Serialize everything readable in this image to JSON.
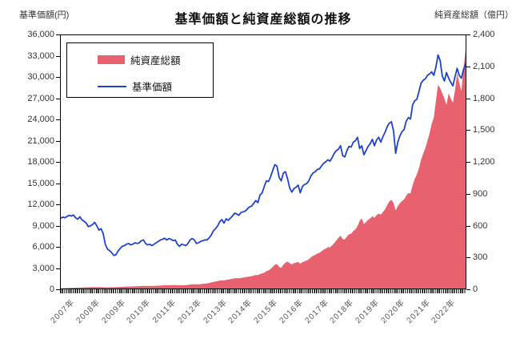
{
  "header": {
    "title": "基準価額と純資産総額の推移",
    "left_axis_caption": "基準価額(円)",
    "right_axis_caption": "純資産総額（億円）"
  },
  "legend": {
    "assets_label": "純資産総額",
    "nav_label": "基準価額"
  },
  "colors": {
    "assets_fill": "#E8616F",
    "nav_line": "#1E43C8",
    "axis_line": "#000000",
    "tick_text": "#333333"
  },
  "chart_data": {
    "type": "area",
    "title": "基準価額と純資産総額の推移",
    "x_unit": "monthly, Jan 2007 - Dec 2022",
    "x_categories": [
      "2007年",
      "2008年",
      "2009年",
      "2010年",
      "2011年",
      "2012年",
      "2013年",
      "2014年",
      "2015年",
      "2016年",
      "2017年",
      "2018年",
      "2019年",
      "2020年",
      "2021年",
      "2022年"
    ],
    "left_axis": {
      "label": "基準価額(円)",
      "min": 0,
      "max": 36000,
      "step": 3000
    },
    "right_axis": {
      "label": "純資産総額（億円）",
      "min": 0,
      "max": 2400,
      "step": 300
    },
    "grid": false,
    "legend_position": "top-left-inside",
    "series": [
      {
        "name": "純資産総額",
        "type": "area",
        "axis": "right",
        "color": "#E8616F",
        "values": [
          1,
          2,
          3,
          4,
          5,
          6,
          7,
          8,
          9,
          10,
          10,
          11,
          11,
          12,
          12,
          13,
          13,
          13,
          13,
          13,
          12,
          11,
          11,
          11,
          12,
          12,
          13,
          14,
          15,
          16,
          17,
          18,
          19,
          19,
          20,
          21,
          22,
          23,
          24,
          25,
          24,
          24,
          24,
          24,
          25,
          26,
          27,
          28,
          29,
          30,
          31,
          32,
          32,
          32,
          33,
          31,
          30,
          31,
          31,
          32,
          34,
          37,
          40,
          40,
          39,
          40,
          42,
          44,
          46,
          48,
          52,
          58,
          62,
          66,
          70,
          74,
          78,
          76,
          82,
          84,
          88,
          92,
          96,
          98,
          97,
          100,
          103,
          106,
          110,
          114,
          117,
          122,
          128,
          126,
          138,
          143,
          150,
          165,
          172,
          185,
          205,
          225,
          232,
          205,
          195,
          225,
          245,
          255,
          240,
          228,
          240,
          246,
          252,
          235,
          250,
          258,
          264,
          276,
          295,
          310,
          318,
          330,
          338,
          352,
          368,
          378,
          392,
          390,
          408,
          430,
          455,
          480,
          500,
          468,
          465,
          492,
          515,
          518,
          545,
          560,
          590,
          640,
          665,
          610,
          630,
          650,
          665,
          685,
          670,
          695,
          710,
          700,
          725,
          750,
          790,
          825,
          840,
          810,
          740,
          780,
          810,
          830,
          845,
          880,
          905,
          900,
          980,
          1040,
          1080,
          1140,
          1220,
          1280,
          1330,
          1400,
          1470,
          1560,
          1620,
          1780,
          1930,
          1900,
          1850,
          1800,
          1740,
          1850,
          1800,
          1760,
          1880,
          2040,
          1950,
          1870,
          2090,
          2260
        ]
      },
      {
        "name": "基準価額",
        "type": "line",
        "axis": "left",
        "color": "#1E43C8",
        "values": [
          10000,
          10150,
          10050,
          10250,
          10400,
          10300,
          10450,
          10050,
          9850,
          10200,
          9750,
          9550,
          9300,
          8800,
          8900,
          9100,
          9400,
          8900,
          8300,
          8500,
          7800,
          6300,
          5600,
          5400,
          5100,
          4700,
          4800,
          5300,
          5700,
          6000,
          6100,
          6300,
          6400,
          6200,
          6300,
          6500,
          6400,
          6500,
          6800,
          6900,
          6400,
          6200,
          6300,
          6100,
          6300,
          6500,
          6700,
          6900,
          7000,
          7150,
          6900,
          7100,
          7000,
          6800,
          6900,
          6300,
          6000,
          6300,
          6200,
          6100,
          6400,
          6900,
          7100,
          6900,
          6400,
          6500,
          6700,
          6800,
          6900,
          6900,
          7200,
          7600,
          8200,
          8500,
          8900,
          9500,
          9800,
          9300,
          9900,
          9700,
          10000,
          10300,
          10700,
          10600,
          10400,
          10800,
          10900,
          11000,
          11300,
          11600,
          11700,
          12100,
          12500,
          12200,
          13300,
          13600,
          14500,
          15300,
          15200,
          15900,
          16800,
          17600,
          17400,
          15800,
          15300,
          16400,
          16600,
          15600,
          14300,
          13700,
          14200,
          14400,
          14700,
          13600,
          14500,
          14800,
          14900,
          15300,
          16000,
          16400,
          16600,
          16900,
          17000,
          17400,
          17800,
          18000,
          18300,
          18100,
          18600,
          19200,
          19600,
          19800,
          20300,
          18900,
          18700,
          19600,
          20200,
          20100,
          20800,
          21000,
          21500,
          19900,
          20300,
          19000,
          19600,
          20200,
          20600,
          21200,
          20300,
          21100,
          21500,
          20800,
          21600,
          22200,
          23000,
          23500,
          23700,
          22400,
          19200,
          20800,
          21700,
          22300,
          22600,
          23800,
          24300,
          24100,
          26100,
          26700,
          26900,
          28000,
          29200,
          29600,
          29800,
          30300,
          30500,
          30800,
          30300,
          31500,
          33200,
          32400,
          30200,
          29500,
          30700,
          29900,
          29300,
          28800,
          30100,
          31300,
          30300,
          29900,
          31100,
          31900
        ]
      }
    ]
  }
}
